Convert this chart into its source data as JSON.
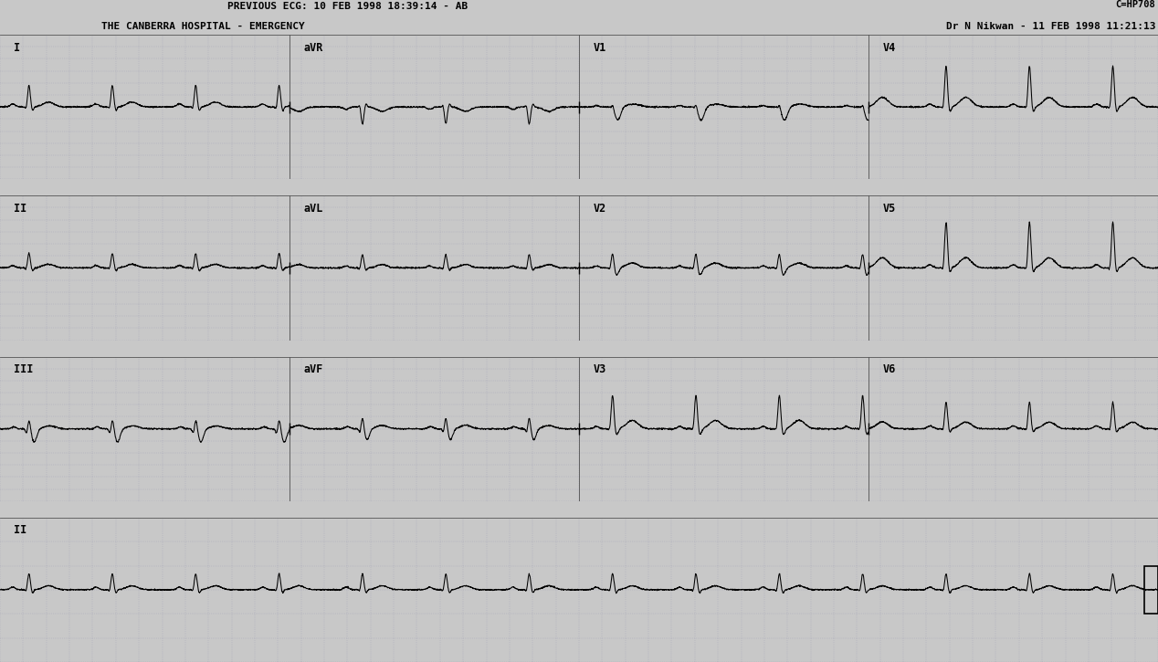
{
  "bg_color": "#c8c8c8",
  "grid_dot_color": "#8888aa",
  "trace_color": "#000000",
  "header_left_line1": "PREVIOUS ECG: 10 FEB 1998 18:39:14 - AB",
  "header_left_line2": "THE CANBERRA HOSPITAL - EMERGENCY",
  "header_right_top": "C=HP708",
  "header_right_line2": "Dr N Nikwan - 11 FEB 1998 11:21:13",
  "fig_width": 12.68,
  "fig_height": 7.25,
  "dpi": 100,
  "total_duration": 10.0,
  "beat_period": 0.72,
  "row_ylim": [
    -3.0,
    3.0
  ],
  "rhythm_ylim": [
    -1.5,
    1.5
  ]
}
